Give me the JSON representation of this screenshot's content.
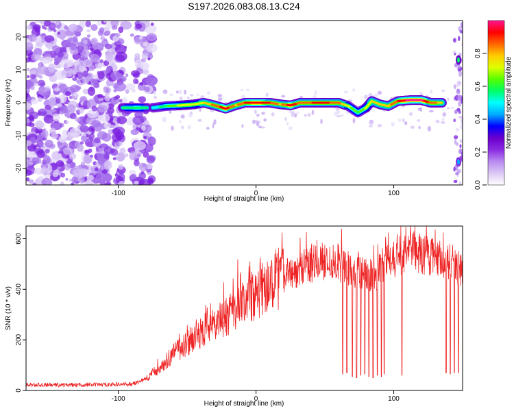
{
  "figure_title": "S197.2026.083.08.13.C24",
  "chart_data": [
    {
      "type": "heatmap",
      "name": "spectrogram",
      "xlabel": "Height of straight line (km)",
      "ylabel": "Frequency (Hz)",
      "xlim": [
        -167,
        150
      ],
      "ylim": [
        -25,
        25
      ],
      "xticks": [
        -100,
        0,
        100
      ],
      "xtick_labels": [
        "-100",
        "0",
        "100"
      ],
      "yticks": [
        -20,
        -10,
        0,
        10,
        20
      ],
      "ytick_labels": [
        "-20",
        "-10",
        "0",
        "10",
        "20"
      ],
      "colorbar": {
        "label": "Normalized spectral amplitude",
        "range": [
          0,
          1
        ],
        "ticks": [
          0.0,
          0.2,
          0.4,
          0.6,
          0.8
        ],
        "tick_labels": [
          "0.0",
          "0.2",
          "0.4",
          "0.6",
          "0.8"
        ],
        "colormap": [
          "#ffffff",
          "#dcc8f5",
          "#b98af0",
          "#8a2be2",
          "#6b00cc",
          "#0000ff",
          "#00aaff",
          "#00ffff",
          "#00ff66",
          "#55ff00",
          "#ddff00",
          "#ffcc00",
          "#ff6600",
          "#ff0000",
          "#ff1493"
        ]
      },
      "ridge": [
        {
          "x": -97,
          "freq": -1.5,
          "amp": 0.55
        },
        {
          "x": -85,
          "freq": -1.5,
          "amp": 0.6
        },
        {
          "x": -74,
          "freq": -1.5,
          "amp": 0.5
        },
        {
          "x": -65,
          "freq": -1.0,
          "amp": 0.6
        },
        {
          "x": -55,
          "freq": -0.8,
          "amp": 0.7
        },
        {
          "x": -45,
          "freq": -0.5,
          "amp": 0.7
        },
        {
          "x": -38,
          "freq": 0.0,
          "amp": 0.75
        },
        {
          "x": -30,
          "freq": -0.8,
          "amp": 0.85
        },
        {
          "x": -22,
          "freq": -1.8,
          "amp": 0.95
        },
        {
          "x": -15,
          "freq": -0.8,
          "amp": 0.8
        },
        {
          "x": -8,
          "freq": 0.0,
          "amp": 0.9
        },
        {
          "x": 0,
          "freq": 0.0,
          "amp": 0.95
        },
        {
          "x": 10,
          "freq": 0.0,
          "amp": 0.9
        },
        {
          "x": 18,
          "freq": -0.5,
          "amp": 0.8
        },
        {
          "x": 25,
          "freq": -0.8,
          "amp": 0.95
        },
        {
          "x": 32,
          "freq": 0.0,
          "amp": 0.85
        },
        {
          "x": 42,
          "freq": 0.0,
          "amp": 0.9
        },
        {
          "x": 52,
          "freq": 0.0,
          "amp": 0.9
        },
        {
          "x": 60,
          "freq": 0.0,
          "amp": 0.85
        },
        {
          "x": 67,
          "freq": -1.0,
          "amp": 0.7
        },
        {
          "x": 74,
          "freq": -3.0,
          "amp": 0.6
        },
        {
          "x": 80,
          "freq": -1.5,
          "amp": 0.7
        },
        {
          "x": 84,
          "freq": 0.5,
          "amp": 0.75
        },
        {
          "x": 90,
          "freq": -0.5,
          "amp": 0.8
        },
        {
          "x": 96,
          "freq": -1.0,
          "amp": 0.8
        },
        {
          "x": 103,
          "freq": 0.5,
          "amp": 0.9
        },
        {
          "x": 112,
          "freq": 0.8,
          "amp": 1.0
        },
        {
          "x": 120,
          "freq": 0.8,
          "amp": 1.0
        },
        {
          "x": 127,
          "freq": 0.0,
          "amp": 0.85
        },
        {
          "x": 135,
          "freq": 0.0,
          "amp": 0.8
        }
      ],
      "side_peaks": [
        {
          "x": 147,
          "freq": 13,
          "amp": 0.6
        },
        {
          "x": 147,
          "freq": -18,
          "amp": 0.4
        }
      ]
    },
    {
      "type": "line",
      "name": "snr",
      "xlabel": "Height of straight line (km)",
      "ylabel": "SNR (10 * v/v)",
      "xlim": [
        -167,
        150
      ],
      "ylim": [
        0,
        650
      ],
      "xticks": [
        -100,
        0,
        100
      ],
      "xtick_labels": [
        "-100",
        "0",
        "100"
      ],
      "yticks": [
        0,
        200,
        400,
        600
      ],
      "ytick_labels": [
        "0",
        "200",
        "400",
        "600"
      ],
      "color": "#ee2222",
      "envelope": {
        "x": [
          -167,
          -120,
          -90,
          -80,
          -70,
          -60,
          -50,
          -40,
          -30,
          -20,
          -10,
          0,
          10,
          20,
          30,
          40,
          50,
          60,
          70,
          80,
          90,
          100,
          110,
          120,
          130,
          140,
          150
        ],
        "y": [
          22,
          22,
          25,
          45,
          90,
          145,
          190,
          230,
          260,
          295,
          340,
          380,
          420,
          455,
          475,
          500,
          510,
          505,
          480,
          455,
          470,
          520,
          545,
          540,
          520,
          510,
          480
        ]
      },
      "dropouts": [
        {
          "x": 63,
          "y": 65
        },
        {
          "x": 66,
          "y": 70
        },
        {
          "x": 70,
          "y": 55
        },
        {
          "x": 73,
          "y": 50
        },
        {
          "x": 76,
          "y": 60
        },
        {
          "x": 79,
          "y": 65
        },
        {
          "x": 82,
          "y": 55
        },
        {
          "x": 85,
          "y": 50
        },
        {
          "x": 88,
          "y": 60
        },
        {
          "x": 91,
          "y": 55
        },
        {
          "x": 93,
          "y": 65
        },
        {
          "x": 106,
          "y": 60
        },
        {
          "x": 138,
          "y": 70
        },
        {
          "x": 141,
          "y": 65
        },
        {
          "x": 144,
          "y": 70
        },
        {
          "x": 147,
          "y": 70
        }
      ]
    }
  ]
}
